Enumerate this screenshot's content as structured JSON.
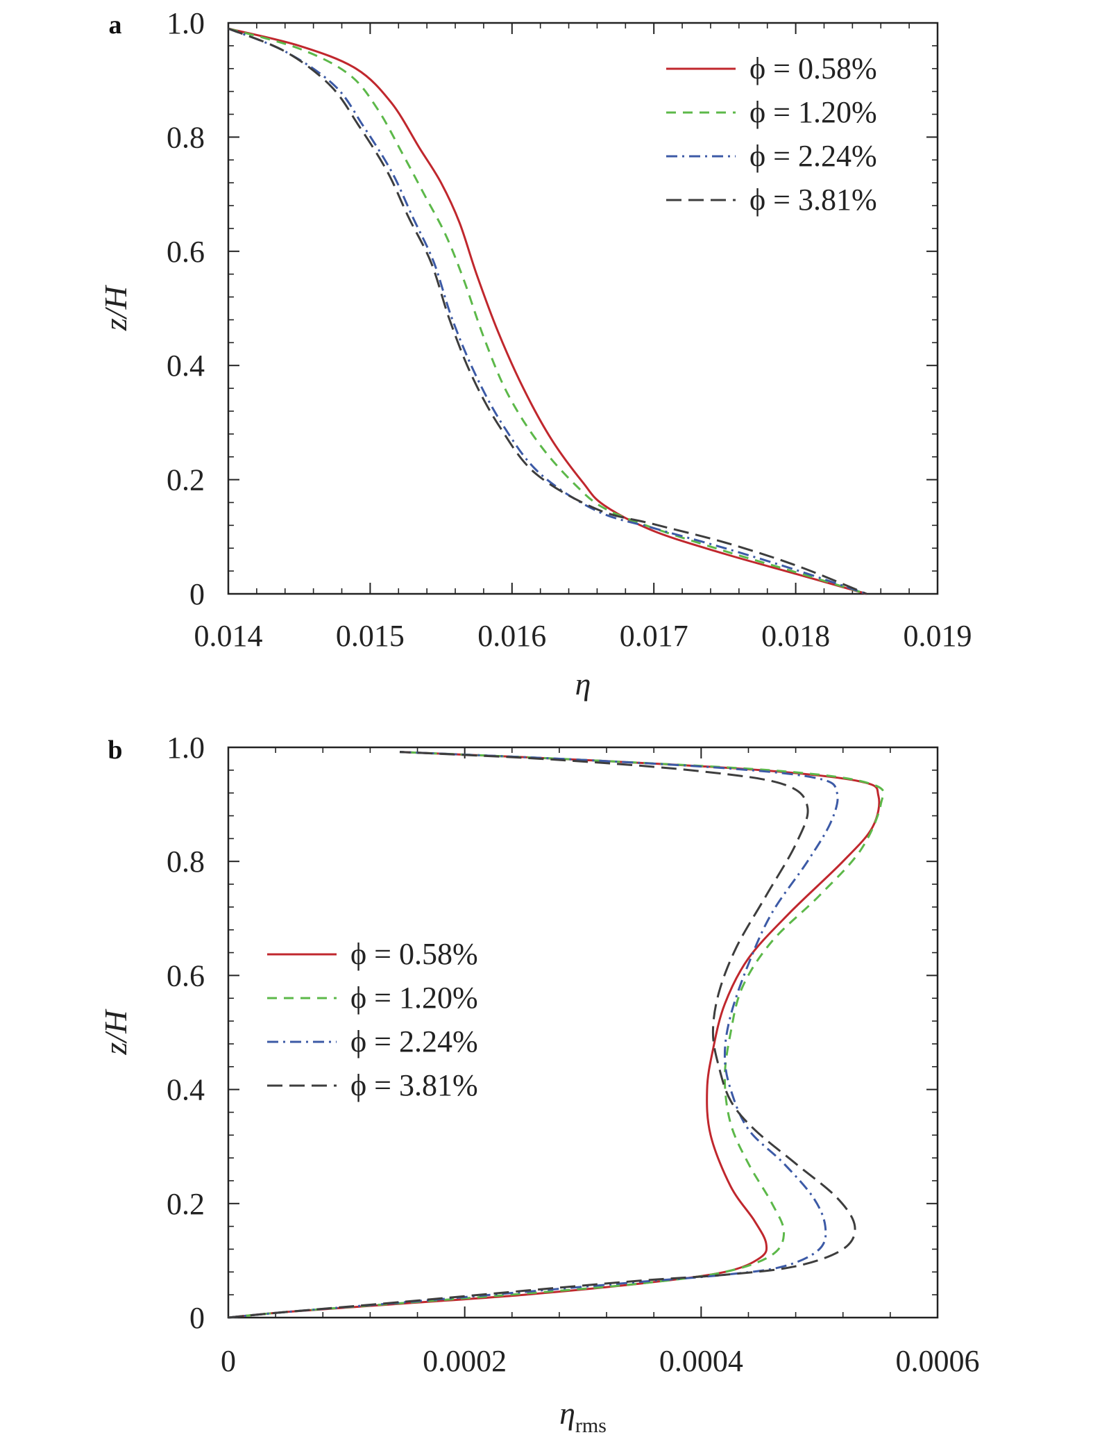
{
  "chart_data": [
    {
      "panel": "a",
      "type": "line",
      "xlabel": "η",
      "ylabel": "z/H",
      "xlim": [
        0.014,
        0.019
      ],
      "ylim": [
        0,
        1.0
      ],
      "xticks": [
        "0.014",
        "0.015",
        "0.016",
        "0.017",
        "0.018",
        "0.019"
      ],
      "yticks": [
        "0",
        "0.2",
        "0.4",
        "0.6",
        "0.8",
        "1.0"
      ],
      "legend_position": "top-right",
      "grid": false,
      "series": [
        {
          "name": "ϕ = 0.58%",
          "color": "#c0272d",
          "dash": "solid",
          "points": [
            [
              0.014,
              0.99
            ],
            [
              0.0145,
              0.96
            ],
            [
              0.0149,
              0.92
            ],
            [
              0.01515,
              0.86
            ],
            [
              0.01535,
              0.78
            ],
            [
              0.0155,
              0.72
            ],
            [
              0.01563,
              0.65
            ],
            [
              0.01575,
              0.56
            ],
            [
              0.0159,
              0.46
            ],
            [
              0.01608,
              0.36
            ],
            [
              0.01628,
              0.27
            ],
            [
              0.0165,
              0.195
            ],
            [
              0.01665,
              0.155
            ],
            [
              0.017,
              0.11
            ],
            [
              0.0175,
              0.07
            ],
            [
              0.018,
              0.035
            ],
            [
              0.0185,
              0.0
            ]
          ]
        },
        {
          "name": "ϕ = 1.20%",
          "color": "#5cb849",
          "dash": "14,10",
          "points": [
            [
              0.014,
              0.99
            ],
            [
              0.0145,
              0.955
            ],
            [
              0.01485,
              0.91
            ],
            [
              0.01505,
              0.85
            ],
            [
              0.01523,
              0.77
            ],
            [
              0.01538,
              0.7
            ],
            [
              0.01553,
              0.63
            ],
            [
              0.01566,
              0.55
            ],
            [
              0.0158,
              0.45
            ],
            [
              0.01597,
              0.35
            ],
            [
              0.0162,
              0.26
            ],
            [
              0.01645,
              0.19
            ],
            [
              0.01665,
              0.15
            ],
            [
              0.017,
              0.115
            ],
            [
              0.0175,
              0.075
            ],
            [
              0.018,
              0.038
            ],
            [
              0.0185,
              0.0
            ]
          ]
        },
        {
          "name": "ϕ = 2.24%",
          "color": "#3c5aa6",
          "dash": "16,7,3,7",
          "points": [
            [
              0.014,
              0.99
            ],
            [
              0.0144,
              0.95
            ],
            [
              0.01475,
              0.89
            ],
            [
              0.01495,
              0.82
            ],
            [
              0.01515,
              0.74
            ],
            [
              0.0153,
              0.66
            ],
            [
              0.01545,
              0.58
            ],
            [
              0.01558,
              0.48
            ],
            [
              0.01575,
              0.38
            ],
            [
              0.01595,
              0.29
            ],
            [
              0.0162,
              0.21
            ],
            [
              0.0166,
              0.145
            ],
            [
              0.017,
              0.115
            ],
            [
              0.0175,
              0.08
            ],
            [
              0.018,
              0.042
            ],
            [
              0.0185,
              0.0
            ]
          ]
        },
        {
          "name": "ϕ = 3.81%",
          "color": "#3d3d3d",
          "dash": "22,10",
          "points": [
            [
              0.014,
              0.99
            ],
            [
              0.0144,
              0.95
            ],
            [
              0.01472,
              0.89
            ],
            [
              0.01492,
              0.82
            ],
            [
              0.01512,
              0.74
            ],
            [
              0.01527,
              0.66
            ],
            [
              0.01543,
              0.58
            ],
            [
              0.01556,
              0.48
            ],
            [
              0.01572,
              0.38
            ],
            [
              0.01592,
              0.29
            ],
            [
              0.01617,
              0.21
            ],
            [
              0.0166,
              0.148
            ],
            [
              0.017,
              0.122
            ],
            [
              0.0175,
              0.09
            ],
            [
              0.018,
              0.05
            ],
            [
              0.0185,
              0.0
            ]
          ]
        }
      ]
    },
    {
      "panel": "b",
      "type": "line",
      "xlabel": "η",
      "xlabel_sub": "rms",
      "ylabel": "z/H",
      "xlim": [
        0,
        0.0006
      ],
      "ylim": [
        0,
        1.0
      ],
      "xticks": [
        "0",
        "0.0002",
        "0.0004",
        "0.0006"
      ],
      "yticks": [
        "0",
        "0.2",
        "0.4",
        "0.6",
        "0.8",
        "1.0"
      ],
      "legend_position": "center-left",
      "grid": false,
      "series": [
        {
          "name": "ϕ = 0.58%",
          "color": "#c0272d",
          "dash": "solid",
          "points": [
            [
              0.0,
              0.0
            ],
            [
              5e-05,
              0.01
            ],
            [
              0.00015,
              0.025
            ],
            [
              0.00025,
              0.04
            ],
            [
              0.00035,
              0.06
            ],
            [
              0.00042,
              0.08
            ],
            [
              0.00045,
              0.105
            ],
            [
              0.000455,
              0.13
            ],
            [
              0.000445,
              0.17
            ],
            [
              0.000425,
              0.23
            ],
            [
              0.000408,
              0.32
            ],
            [
              0.000405,
              0.4
            ],
            [
              0.00041,
              0.47
            ],
            [
              0.00042,
              0.55
            ],
            [
              0.00044,
              0.63
            ],
            [
              0.000475,
              0.71
            ],
            [
              0.00052,
              0.8
            ],
            [
              0.000545,
              0.86
            ],
            [
              0.00055,
              0.915
            ],
            [
              0.000535,
              0.94
            ],
            [
              0.00045,
              0.96
            ],
            [
              0.0003,
              0.978
            ],
            [
              0.000145,
              0.992
            ]
          ]
        },
        {
          "name": "ϕ = 1.20%",
          "color": "#5cb849",
          "dash": "14,10",
          "points": [
            [
              0.0,
              0.0
            ],
            [
              5e-05,
              0.01
            ],
            [
              0.00015,
              0.026
            ],
            [
              0.00025,
              0.042
            ],
            [
              0.00035,
              0.06
            ],
            [
              0.00042,
              0.08
            ],
            [
              0.00046,
              0.11
            ],
            [
              0.00047,
              0.15
            ],
            [
              0.00046,
              0.2
            ],
            [
              0.00044,
              0.27
            ],
            [
              0.000425,
              0.34
            ],
            [
              0.00042,
              0.42
            ],
            [
              0.000425,
              0.5
            ],
            [
              0.000435,
              0.58
            ],
            [
              0.00046,
              0.66
            ],
            [
              0.0005,
              0.74
            ],
            [
              0.000535,
              0.82
            ],
            [
              0.000552,
              0.9
            ],
            [
              0.000545,
              0.935
            ],
            [
              0.00047,
              0.958
            ],
            [
              0.0003,
              0.978
            ],
            [
              0.000145,
              0.992
            ]
          ]
        },
        {
          "name": "ϕ = 2.24%",
          "color": "#3c5aa6",
          "dash": "16,7,3,7",
          "points": [
            [
              0.0,
              0.0
            ],
            [
              5e-05,
              0.01
            ],
            [
              0.00015,
              0.027
            ],
            [
              0.00025,
              0.045
            ],
            [
              0.00035,
              0.063
            ],
            [
              0.00042,
              0.075
            ],
            [
              0.00047,
              0.09
            ],
            [
              0.0005,
              0.12
            ],
            [
              0.000505,
              0.16
            ],
            [
              0.000495,
              0.21
            ],
            [
              0.00047,
              0.27
            ],
            [
              0.00044,
              0.33
            ],
            [
              0.000425,
              0.4
            ],
            [
              0.00042,
              0.46
            ],
            [
              0.000425,
              0.53
            ],
            [
              0.00044,
              0.62
            ],
            [
              0.00046,
              0.71
            ],
            [
              0.00049,
              0.8
            ],
            [
              0.00051,
              0.87
            ],
            [
              0.000515,
              0.92
            ],
            [
              0.0005,
              0.945
            ],
            [
              0.00043,
              0.962
            ],
            [
              0.0003,
              0.978
            ],
            [
              0.000145,
              0.992
            ]
          ]
        },
        {
          "name": "ϕ = 3.81%",
          "color": "#3d3d3d",
          "dash": "22,10",
          "points": [
            [
              0.0,
              0.0
            ],
            [
              5e-05,
              0.01
            ],
            [
              0.00015,
              0.028
            ],
            [
              0.00025,
              0.047
            ],
            [
              0.00035,
              0.065
            ],
            [
              0.00042,
              0.075
            ],
            [
              0.00048,
              0.09
            ],
            [
              0.00052,
              0.12
            ],
            [
              0.00053,
              0.16
            ],
            [
              0.000515,
              0.21
            ],
            [
              0.00048,
              0.27
            ],
            [
              0.000445,
              0.33
            ],
            [
              0.000425,
              0.38
            ],
            [
              0.000415,
              0.44
            ],
            [
              0.00041,
              0.5
            ],
            [
              0.000415,
              0.57
            ],
            [
              0.00043,
              0.65
            ],
            [
              0.000455,
              0.74
            ],
            [
              0.00048,
              0.83
            ],
            [
              0.00049,
              0.895
            ],
            [
              0.00047,
              0.935
            ],
            [
              0.0004,
              0.958
            ],
            [
              0.00028,
              0.978
            ],
            [
              0.000145,
              0.992
            ]
          ]
        }
      ]
    }
  ]
}
